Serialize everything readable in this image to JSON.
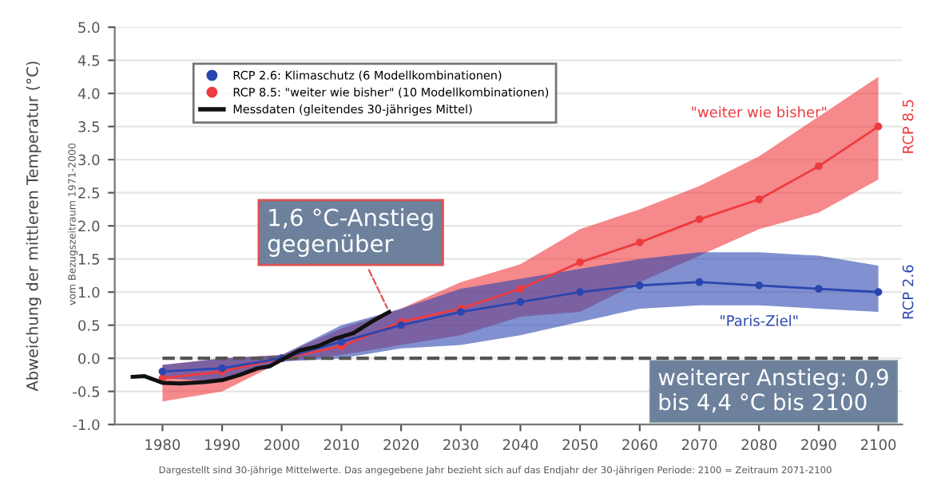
{
  "chart_data": {
    "type": "line",
    "ylabel": "Abweichung der mittleren Temperatur (°C)",
    "annotations": [
      "vom Bezugszeitraum 1971-2000",
      {
        "text": "1,6 °C-Anstieg\ngegenüber",
        "x": 2018,
        "y": 0.7
      },
      "weiterer Anstieg: 0,9\nbis 4,4 °C bis 2100",
      "Dargestellt sind 30-jährige Mittelwerte. Das angegebene Jahr bezieht sich auf das Endjahr der 30-jährigen Periode: 2100 = Zeitraum 2071-2100",
      "\"weiter wie bisher\"",
      "\"Paris-Ziel\"",
      "RCP 8.5",
      "RCP 2.6"
    ],
    "x": [
      1980,
      1990,
      2000,
      2010,
      2020,
      2030,
      2040,
      2050,
      2060,
      2070,
      2080,
      2090,
      2100
    ],
    "series": [
      {
        "name": "RCP 8.5: \"weiter wie bisher\" (10 Modellkombinationen)",
        "color": "#ee3b3f",
        "marker": "circle",
        "values": [
          -0.3,
          -0.2,
          0.0,
          0.18,
          0.55,
          0.75,
          1.05,
          1.45,
          1.75,
          2.1,
          2.4,
          2.9,
          3.5
        ],
        "lower": [
          -0.65,
          -0.5,
          -0.05,
          0.05,
          0.2,
          0.35,
          0.63,
          0.7,
          1.15,
          1.55,
          1.95,
          2.2,
          2.7
        ],
        "upper": [
          -0.1,
          0.0,
          0.05,
          0.45,
          0.75,
          1.15,
          1.42,
          1.95,
          2.25,
          2.6,
          3.05,
          3.65,
          4.25
        ]
      },
      {
        "name": "RCP 2.6: Klimaschutz (6 Modellkombinationen)",
        "color": "#2b46b0",
        "marker": "circle",
        "values": [
          -0.2,
          -0.15,
          0.0,
          0.25,
          0.5,
          0.7,
          0.85,
          1.0,
          1.1,
          1.15,
          1.1,
          1.05,
          1.0
        ],
        "lower": [
          -0.3,
          -0.35,
          -0.05,
          0.0,
          0.15,
          0.2,
          0.35,
          0.55,
          0.75,
          0.8,
          0.8,
          0.75,
          0.7
        ],
        "upper": [
          -0.1,
          0.0,
          0.05,
          0.5,
          0.75,
          1.05,
          1.2,
          1.35,
          1.5,
          1.6,
          1.6,
          1.55,
          1.4
        ]
      },
      {
        "name": "Messdaten (gleitendes 30-jähriges Mittel)",
        "color": "#111111",
        "marker": "none",
        "x": [
          1975,
          1977,
          1980,
          1983,
          1987,
          1990,
          1993,
          1996,
          1998,
          2000,
          2003,
          2006,
          2009,
          2012,
          2015,
          2018
        ],
        "values": [
          -0.28,
          -0.27,
          -0.37,
          -0.38,
          -0.36,
          -0.33,
          -0.25,
          -0.15,
          -0.12,
          -0.02,
          0.12,
          0.18,
          0.3,
          0.38,
          0.55,
          0.7
        ]
      }
    ],
    "ref_lines": [
      {
        "axis": "y",
        "value": 0,
        "color": "#555555",
        "line_style": "dashed"
      }
    ],
    "xlim": [
      1972,
      2104
    ],
    "xticks": [
      1980,
      1990,
      2000,
      2010,
      2020,
      2030,
      2040,
      2050,
      2060,
      2070,
      2080,
      2090,
      2100
    ],
    "ylim": [
      -1,
      5
    ],
    "yticks": [
      {
        "value": -1,
        "label": "-1.0"
      },
      {
        "value": -0.5,
        "label": "-0.5"
      },
      {
        "value": 0,
        "label": "0.0"
      },
      {
        "value": 0.5,
        "label": "0.5"
      },
      {
        "value": 1,
        "label": "1.0"
      },
      {
        "value": 1.5,
        "label": "1.5"
      },
      {
        "value": 2,
        "label": "2.0"
      },
      {
        "value": 2.5,
        "label": "2.5"
      },
      {
        "value": 3,
        "label": "3.0"
      },
      {
        "value": 3.5,
        "label": "3.5"
      },
      {
        "value": 4,
        "label": "4.0"
      },
      {
        "value": 4.5,
        "label": "4.5"
      },
      {
        "value": 5,
        "label": "5.0"
      }
    ],
    "grid": "y",
    "legend": "top left",
    "line_style": "solid"
  }
}
